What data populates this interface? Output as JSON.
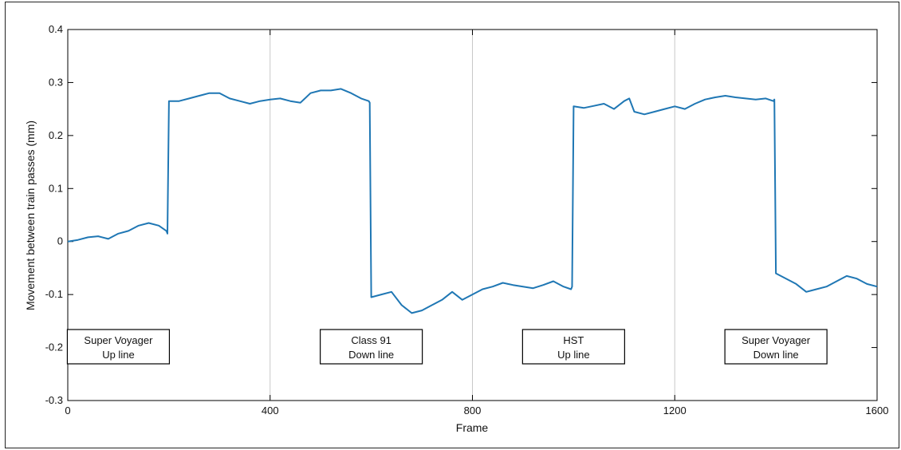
{
  "chart_data": {
    "type": "line",
    "title": "",
    "xlabel": "Frame",
    "ylabel": "Movement between train passes (mm)",
    "xlim": [
      0,
      1600
    ],
    "ylim": [
      -0.3,
      0.4
    ],
    "xticks": [
      0,
      400,
      800,
      1200,
      1600
    ],
    "yticks": [
      -0.3,
      -0.2,
      -0.1,
      0,
      0.1,
      0.2,
      0.3,
      0.4
    ],
    "xtick_labels": [
      "0",
      "400",
      "800",
      "1200",
      "1600"
    ],
    "ytick_labels": [
      "-0.3",
      "-0.2",
      "-0.1",
      "0",
      "0.1",
      "0.2",
      "0.3",
      "0.4"
    ],
    "vertical_gridlines": [
      400,
      800,
      1200
    ],
    "grid": false,
    "line_color": "#1f77b4",
    "series": [
      {
        "x": [
          0,
          20,
          40,
          60,
          80,
          100,
          120,
          140,
          160,
          180,
          195,
          197,
          200,
          220,
          240,
          260,
          280,
          300,
          320,
          340,
          360,
          380,
          400,
          420,
          440,
          460,
          480,
          500,
          520,
          540,
          560,
          580,
          595,
          597,
          600,
          620,
          640,
          660,
          680,
          700,
          720,
          740,
          760,
          780,
          800,
          820,
          840,
          860,
          880,
          900,
          920,
          940,
          960,
          980,
          995,
          997,
          1000,
          1020,
          1040,
          1060,
          1080,
          1100,
          1110,
          1120,
          1140,
          1160,
          1180,
          1200,
          1220,
          1240,
          1260,
          1280,
          1300,
          1320,
          1340,
          1360,
          1380,
          1395,
          1397,
          1400,
          1420,
          1440,
          1460,
          1480,
          1500,
          1520,
          1540,
          1560,
          1580,
          1600
        ],
        "y": [
          0.0,
          0.003,
          0.008,
          0.01,
          0.005,
          0.015,
          0.02,
          0.03,
          0.035,
          0.03,
          0.02,
          0.015,
          0.265,
          0.265,
          0.27,
          0.275,
          0.28,
          0.28,
          0.27,
          0.265,
          0.26,
          0.265,
          0.268,
          0.27,
          0.265,
          0.262,
          0.28,
          0.285,
          0.285,
          0.288,
          0.28,
          0.27,
          0.265,
          0.262,
          -0.105,
          -0.1,
          -0.095,
          -0.12,
          -0.135,
          -0.13,
          -0.12,
          -0.11,
          -0.095,
          -0.11,
          -0.1,
          -0.09,
          -0.085,
          -0.078,
          -0.082,
          -0.085,
          -0.088,
          -0.082,
          -0.075,
          -0.085,
          -0.09,
          -0.085,
          0.255,
          0.252,
          0.256,
          0.26,
          0.25,
          0.265,
          0.27,
          0.245,
          0.24,
          0.245,
          0.25,
          0.255,
          0.25,
          0.26,
          0.268,
          0.272,
          0.275,
          0.272,
          0.27,
          0.268,
          0.27,
          0.265,
          0.268,
          -0.06,
          -0.07,
          -0.08,
          -0.095,
          -0.09,
          -0.085,
          -0.075,
          -0.065,
          -0.07,
          -0.08,
          -0.085
        ]
      }
    ],
    "annotations": [
      {
        "line1": "Super Voyager",
        "line2": "Up line",
        "x": 100
      },
      {
        "line1": "Class 91",
        "line2": "Down line",
        "x": 600
      },
      {
        "line1": "HST",
        "line2": "Up line",
        "x": 1000
      },
      {
        "line1": "Super Voyager",
        "line2": "Down line",
        "x": 1400
      }
    ]
  }
}
